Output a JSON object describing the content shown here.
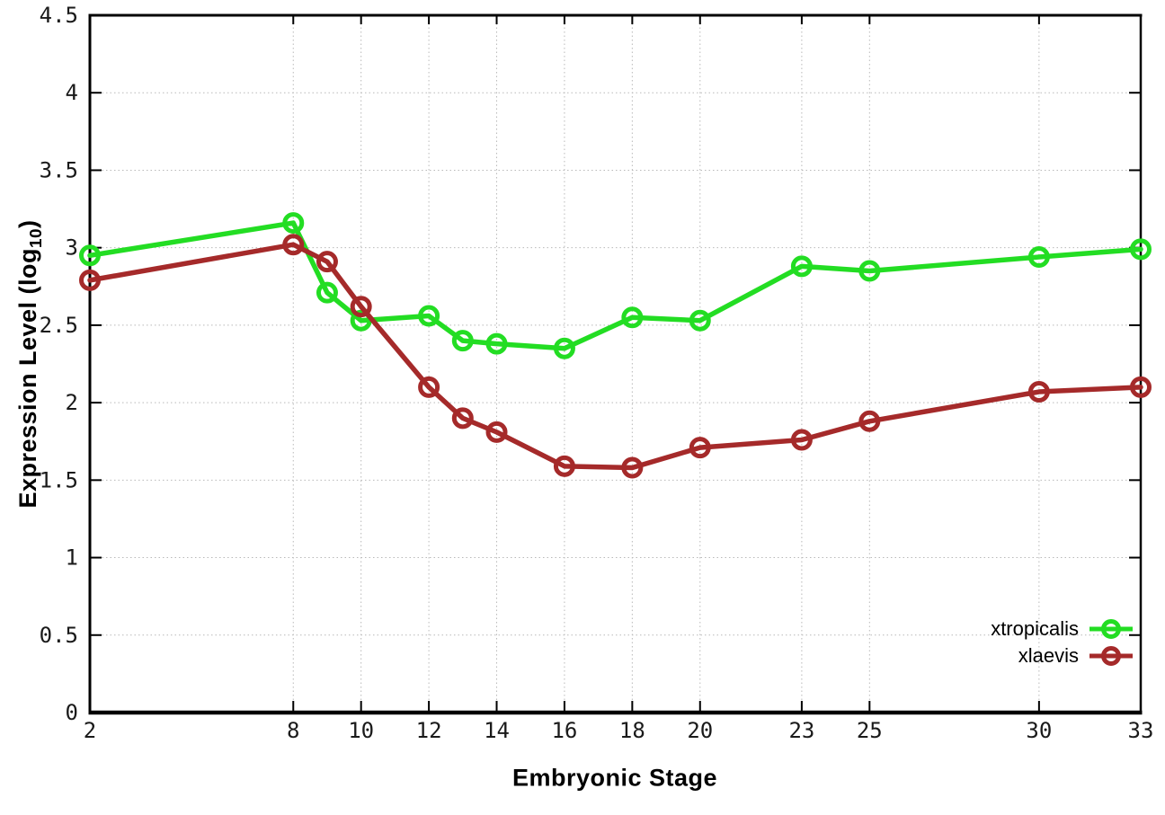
{
  "chart_data": {
    "type": "line",
    "x": [
      2,
      8,
      9,
      10,
      12,
      13,
      14,
      16,
      18,
      20,
      23,
      25,
      30,
      33
    ],
    "series": [
      {
        "name": "xtropicalis",
        "color": "#23dd23",
        "values": [
          2.95,
          3.16,
          2.71,
          2.53,
          2.56,
          2.4,
          2.38,
          2.35,
          2.55,
          2.53,
          2.88,
          2.85,
          2.94,
          2.99
        ]
      },
      {
        "name": "xlaevis",
        "color": "#a52a2a",
        "values": [
          2.79,
          3.02,
          2.91,
          2.62,
          2.1,
          1.9,
          1.81,
          1.59,
          1.58,
          1.71,
          1.76,
          1.88,
          2.07,
          2.1
        ]
      }
    ],
    "title": "",
    "xlabel": "Embryonic Stage",
    "ylabel": "Expression Level (log10)",
    "xticks": [
      2,
      8,
      10,
      12,
      14,
      16,
      18,
      20,
      23,
      25,
      30,
      33
    ],
    "yticks": [
      0,
      0.5,
      1,
      1.5,
      2,
      2.5,
      3,
      3.5,
      4,
      4.5
    ],
    "xlim": [
      2,
      33
    ],
    "ylim": [
      0,
      4.5
    ],
    "grid": true,
    "legend_position": "bottom-right"
  },
  "labels": {
    "xlabel": "Embryonic Stage",
    "ylabel_prefix": "Expression Level (log",
    "ylabel_sub": "10",
    "ylabel_suffix": ")"
  },
  "legend": {
    "items": [
      {
        "label": "xtropicalis"
      },
      {
        "label": "xlaevis"
      }
    ]
  }
}
